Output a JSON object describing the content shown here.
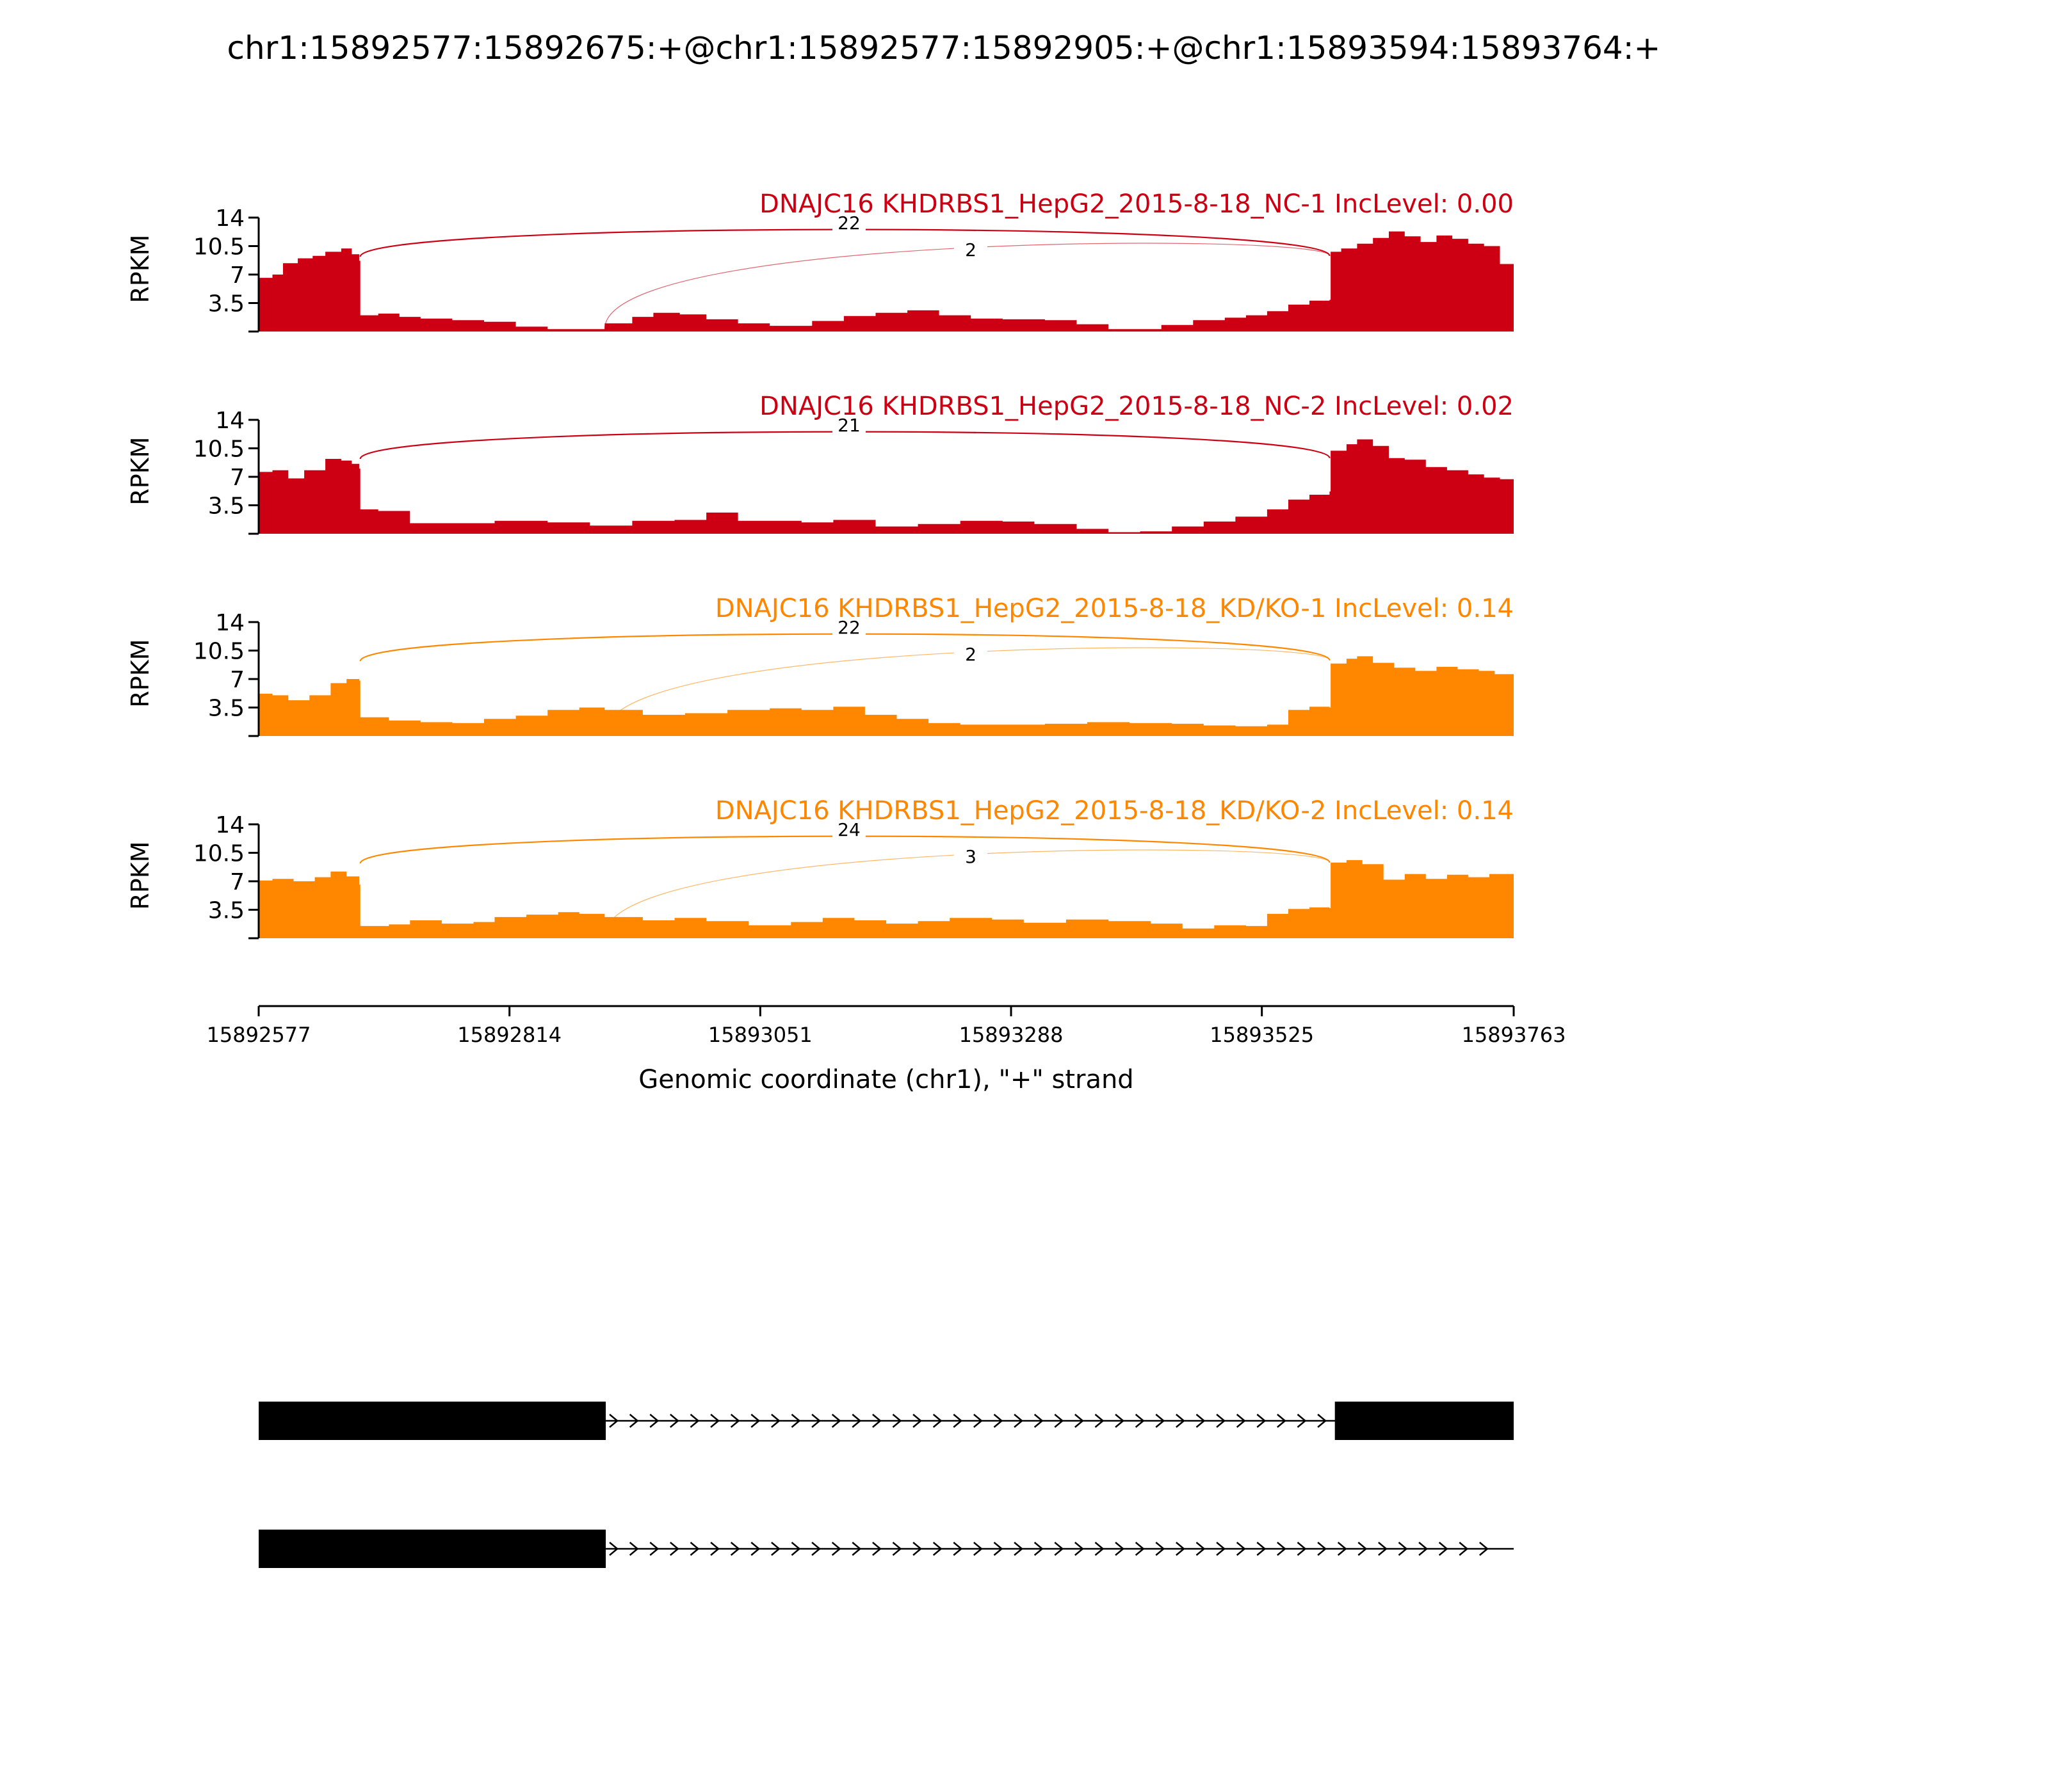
{
  "chart_data": {
    "type": "area",
    "title": "chr1:15892577:15892675:+@chr1:15892577:15892905:+@chr1:15893594:15893764:+",
    "xlabel": "Genomic coordinate (chr1), \"+\" strand",
    "ylabel": "RPKM",
    "xlim": [
      15892577,
      15893763
    ],
    "ylim": [
      0,
      14
    ],
    "yticks": [
      3.5,
      7,
      10.5,
      14
    ],
    "ytick_labels": [
      "3.5",
      "7",
      "10.5",
      "14"
    ],
    "xticks": [
      15892577,
      15892814,
      15893051,
      15893288,
      15893525,
      15893763
    ],
    "xtick_labels": [
      "15892577",
      "15892814",
      "15893051",
      "15893288",
      "15893525",
      "15893763"
    ],
    "colors": {
      "NC": "#cc0012",
      "KD": "#ff8700"
    },
    "tracks": [
      {
        "label": "DNAJC16 KHDRBS1_HepG2_2015-8-18_NC-1 IncLevel: 0.00",
        "color": "#cc0012",
        "x": [
          15892577,
          15892590,
          15892600,
          15892614,
          15892628,
          15892640,
          15892655,
          15892665,
          15892672,
          15892673,
          15892690,
          15892710,
          15892730,
          15892760,
          15892790,
          15892820,
          15892850,
          15892870,
          15892885,
          15892904,
          15892930,
          15892950,
          15892975,
          15893000,
          15893030,
          15893060,
          15893080,
          15893100,
          15893130,
          15893160,
          15893190,
          15893220,
          15893250,
          15893280,
          15893320,
          15893350,
          15893380,
          15893400,
          15893430,
          15893460,
          15893490,
          15893510,
          15893530,
          15893550,
          15893570,
          15893589,
          15893590,
          15893600,
          15893615,
          15893630,
          15893645,
          15893660,
          15893675,
          15893690,
          15893705,
          15893720,
          15893735,
          15893750,
          15893763
        ],
        "y": [
          6.6,
          7.0,
          8.4,
          9.0,
          9.3,
          9.8,
          10.2,
          9.5,
          8.7,
          2.0,
          2.2,
          1.8,
          1.6,
          1.4,
          1.2,
          0.6,
          0.3,
          0.3,
          0.3,
          1.0,
          1.8,
          2.3,
          2.1,
          1.5,
          1.0,
          0.7,
          0.7,
          1.3,
          1.9,
          2.3,
          2.6,
          2.0,
          1.6,
          1.5,
          1.4,
          0.9,
          0.3,
          0.3,
          0.8,
          1.4,
          1.7,
          2.0,
          2.5,
          3.3,
          3.8,
          3.9,
          9.8,
          10.2,
          10.8,
          11.5,
          12.3,
          11.7,
          11.0,
          11.8,
          11.4,
          10.8,
          10.5,
          8.3,
          7.8
        ],
        "junctions": [
          {
            "label": "22",
            "from": 15892673,
            "to": 15893589,
            "peak": 13.0
          },
          {
            "label": "2",
            "from": 15892904,
            "to": 15893589,
            "peak": 11.5
          }
        ]
      },
      {
        "label": "DNAJC16 KHDRBS1_HepG2_2015-8-18_NC-2 IncLevel: 0.02",
        "color": "#cc0012",
        "x": [
          15892577,
          15892590,
          15892605,
          15892620,
          15892640,
          15892655,
          15892665,
          15892672,
          15892673,
          15892690,
          15892720,
          15892760,
          15892800,
          15892850,
          15892890,
          15892930,
          15892970,
          15893000,
          15893030,
          15893060,
          15893090,
          15893120,
          15893160,
          15893200,
          15893240,
          15893280,
          15893310,
          15893350,
          15893380,
          15893410,
          15893440,
          15893470,
          15893500,
          15893530,
          15893550,
          15893570,
          15893589,
          15893590,
          15893605,
          15893615,
          15893630,
          15893645,
          15893660,
          15893680,
          15893700,
          15893720,
          15893735,
          15893750,
          15893763
        ],
        "y": [
          7.6,
          7.8,
          6.8,
          7.8,
          9.2,
          9.0,
          8.6,
          8.0,
          3.0,
          2.8,
          1.3,
          1.3,
          1.6,
          1.4,
          1.0,
          1.6,
          1.7,
          2.6,
          1.6,
          1.6,
          1.4,
          1.7,
          0.9,
          1.2,
          1.6,
          1.5,
          1.2,
          0.6,
          0.2,
          0.3,
          0.9,
          1.5,
          2.1,
          3.0,
          4.2,
          4.8,
          5.2,
          10.2,
          11.0,
          11.6,
          10.8,
          9.3,
          9.1,
          8.2,
          7.8,
          7.3,
          6.9,
          6.7,
          5.5
        ],
        "junctions": [
          {
            "label": "21",
            "from": 15892673,
            "to": 15893589,
            "peak": 13.0
          }
        ]
      },
      {
        "label": "DNAJC16 KHDRBS1_HepG2_2015-8-18_KD/KO-1 IncLevel: 0.14",
        "color": "#ff8700",
        "x": [
          15892577,
          15892590,
          15892605,
          15892625,
          15892645,
          15892660,
          15892672,
          15892673,
          15892700,
          15892730,
          15892760,
          15892790,
          15892820,
          15892850,
          15892880,
          15892904,
          15892940,
          15892980,
          15893020,
          15893060,
          15893090,
          15893120,
          15893150,
          15893180,
          15893210,
          15893240,
          15893280,
          15893320,
          15893360,
          15893400,
          15893440,
          15893470,
          15893500,
          15893530,
          15893550,
          15893570,
          15893589,
          15893590,
          15893605,
          15893615,
          15893630,
          15893650,
          15893670,
          15893690,
          15893710,
          15893730,
          15893745,
          15893763
        ],
        "y": [
          5.2,
          5.0,
          4.4,
          5.0,
          6.5,
          7.0,
          6.8,
          2.3,
          1.9,
          1.7,
          1.6,
          2.1,
          2.5,
          3.2,
          3.5,
          3.2,
          2.6,
          2.8,
          3.2,
          3.4,
          3.2,
          3.6,
          2.6,
          2.1,
          1.6,
          1.4,
          1.4,
          1.5,
          1.7,
          1.6,
          1.5,
          1.3,
          1.2,
          1.4,
          3.2,
          3.6,
          3.5,
          8.9,
          9.5,
          9.8,
          9.0,
          8.4,
          8.0,
          8.5,
          8.2,
          8.0,
          7.6,
          6.9
        ],
        "junctions": [
          {
            "label": "22",
            "from": 15892673,
            "to": 15893589,
            "peak": 13.0
          },
          {
            "label": "2",
            "from": 15892904,
            "to": 15893589,
            "peak": 11.5
          }
        ]
      },
      {
        "label": "DNAJC16 KHDRBS1_HepG2_2015-8-18_KD/KO-2 IncLevel: 0.14",
        "color": "#ff8700",
        "x": [
          15892577,
          15892590,
          15892610,
          15892630,
          15892645,
          15892660,
          15892672,
          15892673,
          15892700,
          15892720,
          15892750,
          15892780,
          15892800,
          15892830,
          15892860,
          15892880,
          15892904,
          15892940,
          15892970,
          15893000,
          15893040,
          15893080,
          15893110,
          15893140,
          15893170,
          15893200,
          15893230,
          15893270,
          15893300,
          15893340,
          15893380,
          15893420,
          15893450,
          15893480,
          15893510,
          15893530,
          15893550,
          15893570,
          15893589,
          15893590,
          15893605,
          15893620,
          15893640,
          15893660,
          15893680,
          15893700,
          15893720,
          15893740,
          15893763
        ],
        "y": [
          7.1,
          7.3,
          7.0,
          7.5,
          8.2,
          7.6,
          6.6,
          1.5,
          1.7,
          2.2,
          1.8,
          2.0,
          2.6,
          2.9,
          3.2,
          3.0,
          2.6,
          2.2,
          2.5,
          2.1,
          1.6,
          2.0,
          2.5,
          2.2,
          1.8,
          2.1,
          2.5,
          2.3,
          1.9,
          2.3,
          2.1,
          1.8,
          1.2,
          1.6,
          1.5,
          3.0,
          3.6,
          3.8,
          3.7,
          9.3,
          9.6,
          9.1,
          7.2,
          7.9,
          7.3,
          7.8,
          7.5,
          7.9,
          7.8
        ],
        "junctions": [
          {
            "label": "24",
            "from": 15892673,
            "to": 15893589,
            "peak": 13.0
          },
          {
            "label": "3",
            "from": 15892904,
            "to": 15893589,
            "peak": 11.5
          }
        ]
      }
    ],
    "gene_models": [
      {
        "exons": [
          [
            15892577,
            15892905
          ],
          [
            15893594,
            15893763
          ]
        ],
        "strand": "+"
      },
      {
        "exons": [
          [
            15892577,
            15892905
          ]
        ],
        "strand": "+"
      }
    ]
  }
}
